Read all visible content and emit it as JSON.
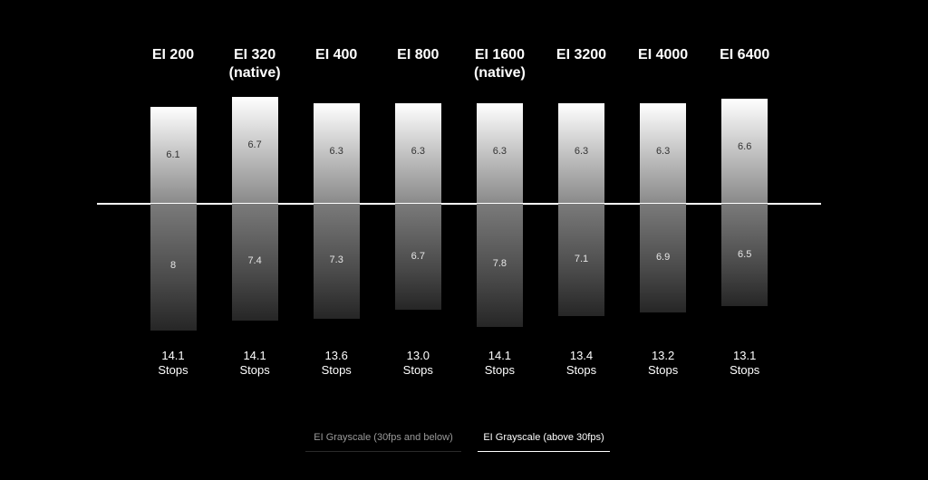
{
  "chart_data": {
    "type": "bar",
    "categories": [
      [
        "EI 200"
      ],
      [
        "EI 320",
        "(native)"
      ],
      [
        "EI 400"
      ],
      [
        "EI 800"
      ],
      [
        "EI 1600",
        "(native)"
      ],
      [
        "EI 3200"
      ],
      [
        "EI 4000"
      ],
      [
        "EI 6400"
      ]
    ],
    "series": [
      {
        "values": [
          6.1,
          6.7,
          6.3,
          6.3,
          6.3,
          6.3,
          6.3,
          6.6
        ]
      },
      {
        "values": [
          8,
          7.4,
          7.3,
          6.7,
          7.8,
          7.1,
          6.9,
          6.5
        ]
      }
    ],
    "value_labels": [
      [
        "6.1",
        "6.7",
        "6.3",
        "6.3",
        "6.3",
        "6.3",
        "6.3",
        "6.6"
      ],
      [
        "8",
        "7.4",
        "7.3",
        "6.7",
        "7.8",
        "7.1",
        "6.9",
        "6.5"
      ]
    ],
    "totals": [
      "14.1",
      "14.1",
      "13.6",
      "13.0",
      "14.1",
      "13.4",
      "13.2",
      "13.1"
    ],
    "totals_unit": "Stops",
    "stacked_around_midline": true,
    "grid": false,
    "colors": {
      "upper_top": "#ffffff",
      "upper_bottom": "#8a8a8a",
      "lower_top": "#7a7a7a",
      "lower_bottom": "#262626",
      "background": "#000000"
    }
  },
  "tabs": [
    {
      "label": "EI Grayscale (30fps and below)",
      "active": false
    },
    {
      "label": "EI Grayscale (above 30fps)",
      "active": true
    }
  ]
}
